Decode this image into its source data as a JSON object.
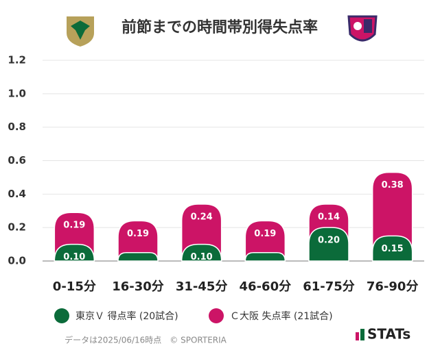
{
  "chart_data": {
    "type": "stacked-bar",
    "title": "前節までの時間帯別得失点率",
    "categories": [
      "0-15分",
      "16-30分",
      "31-45分",
      "46-60分",
      "61-75分",
      "76-90分"
    ],
    "series": [
      {
        "name": "東京Ｖ 得点率 (20試合)",
        "color": "#0b6b3a",
        "values": [
          0.1,
          0.05,
          0.1,
          0.05,
          0.2,
          0.15
        ],
        "value_labels": [
          "0.10",
          null,
          "0.10",
          null,
          "0.20",
          "0.15"
        ]
      },
      {
        "name": "Ｃ大阪 失点率 (21試合)",
        "color": "#cc1466",
        "values": [
          0.19,
          0.19,
          0.24,
          0.19,
          0.14,
          0.38
        ],
        "value_labels": [
          "0.19",
          "0.19",
          "0.24",
          "0.19",
          "0.14",
          "0.38"
        ]
      }
    ],
    "ylim": [
      0,
      1.2
    ],
    "yticks": [
      {
        "value": 0,
        "label": "0.0"
      },
      {
        "value": 0.2,
        "label": "0.2"
      },
      {
        "value": 0.4,
        "label": "0.4"
      },
      {
        "value": 0.6,
        "label": "0.6"
      },
      {
        "value": 0.8,
        "label": "0.8"
      },
      {
        "value": 1.0,
        "label": "1.0"
      },
      {
        "value": 1.2,
        "label": "1.2"
      }
    ],
    "grid": true,
    "footnote": "データは2025/06/16時点　© SPORTERIA",
    "brand": "STATs"
  }
}
